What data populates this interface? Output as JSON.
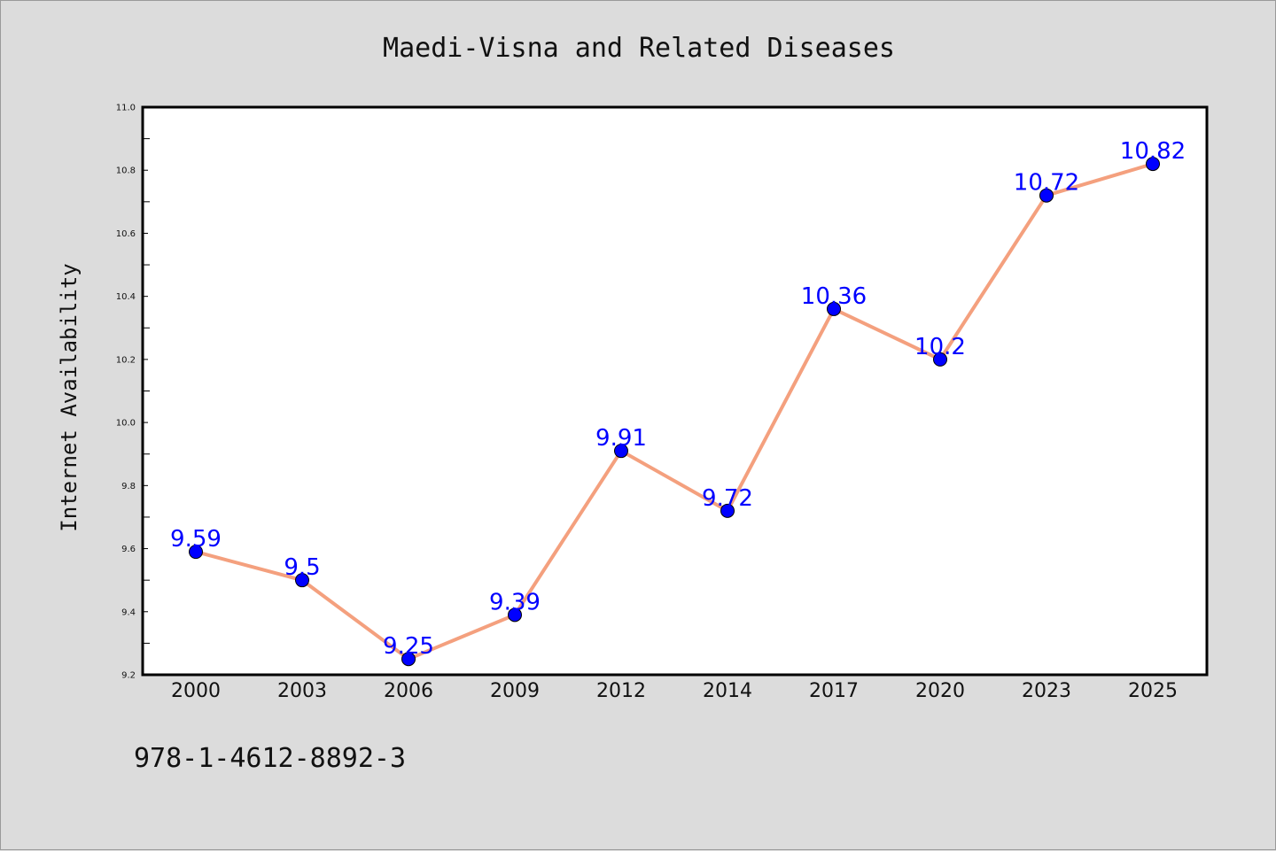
{
  "chart_data": {
    "type": "line",
    "title": "Maedi-Visna and Related Diseases",
    "xlabel": "",
    "ylabel": "Internet Availability",
    "categories": [
      "2000",
      "2003",
      "2006",
      "2009",
      "2012",
      "2014",
      "2017",
      "2020",
      "2023",
      "2025"
    ],
    "series": [
      {
        "values": [
          9.59,
          9.5,
          9.25,
          9.39,
          9.91,
          9.72,
          10.36,
          10.2,
          10.72,
          10.82
        ],
        "labels": [
          "9.59",
          "9.5",
          "9.25",
          "9.39",
          "9.91",
          "9.72",
          "10.36",
          "10.2",
          "10.72",
          "10.82"
        ],
        "line_color": "#f4a07e",
        "marker_color": "#0000ff"
      }
    ],
    "ylim": [
      9.2,
      11.0
    ],
    "yticks": [
      "9.2",
      "9.4",
      "9.6",
      "9.8",
      "10.0",
      "10.2",
      "10.4",
      "10.6",
      "10.8",
      "11.0"
    ],
    "grid": false,
    "legend": "none"
  },
  "footer": {
    "isbn": "978-1-4612-8892-3"
  },
  "colors": {
    "background": "#dcdcdc",
    "plot_background": "#ffffff",
    "label_color": "#0000ff"
  }
}
